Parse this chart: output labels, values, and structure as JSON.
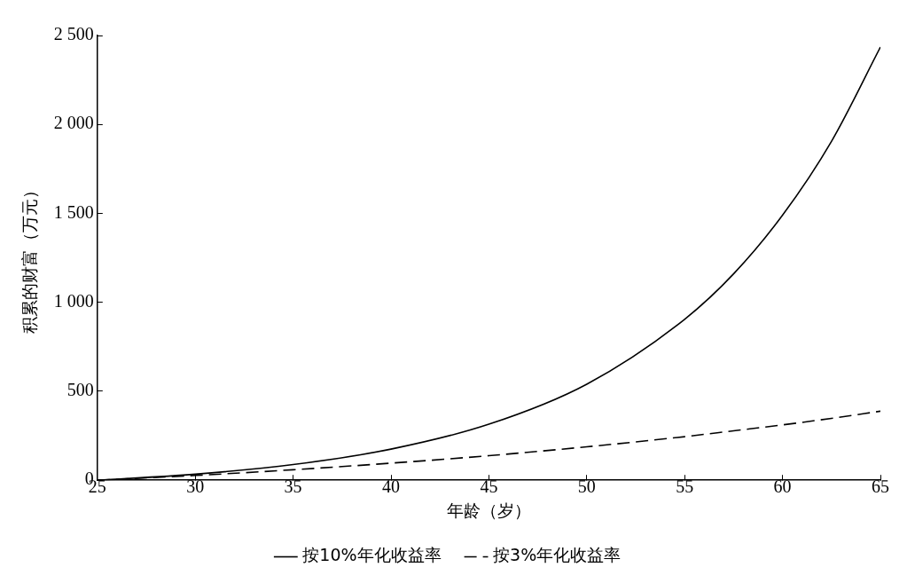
{
  "chart_data": {
    "type": "line",
    "xlabel": "年龄（岁）",
    "ylabel": "积累的财富（万元）",
    "x": [
      25,
      30,
      35,
      40,
      45,
      50,
      55,
      57.5,
      60,
      62.5,
      65
    ],
    "series": [
      {
        "name": "按10%年化收益率",
        "color": "#000000",
        "line_style": "solid",
        "values": [
          0,
          34,
          88,
          175,
          315,
          540,
          905,
          1160,
          1490,
          1905,
          2435
        ]
      },
      {
        "name": "按3%年化收益率",
        "color": "#000000",
        "line_style": "dashed",
        "values": [
          0,
          27,
          59,
          96,
          138,
          188,
          245,
          278,
          311,
          348,
          388
        ]
      }
    ],
    "xlim": [
      25,
      65
    ],
    "xticks": [
      25,
      30,
      35,
      40,
      45,
      50,
      55,
      60,
      65
    ],
    "ylim": [
      0,
      2500
    ],
    "yticks": [
      0,
      500,
      {
        "value": 1000,
        "label": "1 000"
      },
      {
        "value": 1500,
        "label": "1 500"
      },
      {
        "value": 2000,
        "label": "2 000"
      },
      {
        "value": 2500,
        "label": "2 500"
      }
    ],
    "grid": false,
    "legend": "bottom",
    "marker": "none"
  }
}
